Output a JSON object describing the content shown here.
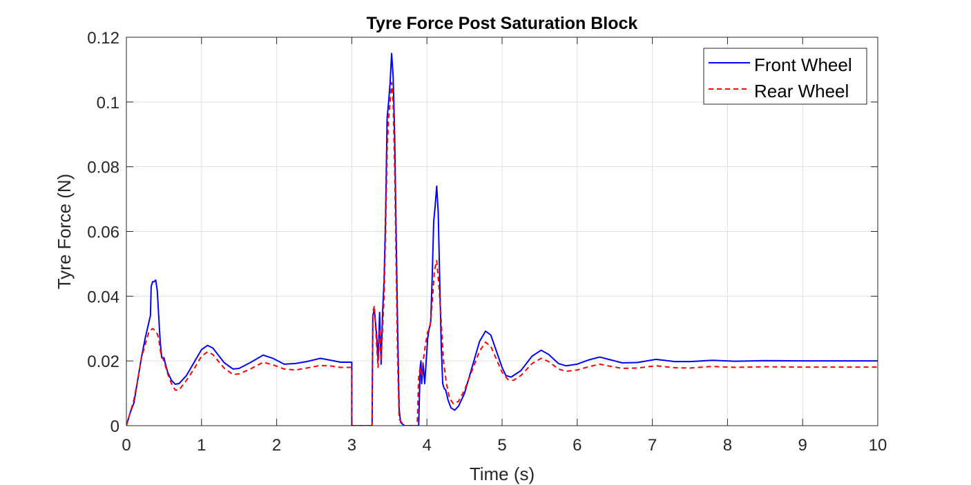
{
  "chart_data": {
    "type": "line",
    "title": "Tyre Force Post Saturation Block",
    "xlabel": "Time (s)",
    "ylabel": "Tyre Force (N)",
    "xlim": [
      0,
      10
    ],
    "ylim": [
      0,
      0.12
    ],
    "xticks": [
      0,
      1,
      2,
      3,
      4,
      5,
      6,
      7,
      8,
      9,
      10
    ],
    "xtick_labels": [
      "0",
      "1",
      "2",
      "3",
      "4",
      "5",
      "6",
      "7",
      "8",
      "9",
      "10"
    ],
    "yticks": [
      0,
      0.02,
      0.04,
      0.06,
      0.08,
      0.1,
      0.12
    ],
    "ytick_labels": [
      "0",
      "0.02",
      "0.04",
      "0.06",
      "0.08",
      "0.1",
      "0.12"
    ],
    "grid": true,
    "legend": "top-right",
    "series": [
      {
        "name": "Front Wheel",
        "color": "#0000ff",
        "style": "solid",
        "points": [
          [
            0,
            0
          ],
          [
            0.05,
            0.004
          ],
          [
            0.1,
            0.007
          ],
          [
            0.15,
            0.014
          ],
          [
            0.2,
            0.021
          ],
          [
            0.25,
            0.027
          ],
          [
            0.3,
            0.032
          ],
          [
            0.32,
            0.034
          ],
          [
            0.33,
            0.043
          ],
          [
            0.35,
            0.0445
          ],
          [
            0.37,
            0.0445
          ],
          [
            0.39,
            0.045
          ],
          [
            0.41,
            0.042
          ],
          [
            0.43,
            0.034
          ],
          [
            0.45,
            0.026
          ],
          [
            0.47,
            0.021
          ],
          [
            0.5,
            0.021
          ],
          [
            0.52,
            0.019
          ],
          [
            0.55,
            0.0165
          ],
          [
            0.6,
            0.014
          ],
          [
            0.65,
            0.0128
          ],
          [
            0.7,
            0.013
          ],
          [
            0.8,
            0.0155
          ],
          [
            0.9,
            0.0195
          ],
          [
            1.0,
            0.0235
          ],
          [
            1.08,
            0.0248
          ],
          [
            1.15,
            0.024
          ],
          [
            1.3,
            0.0195
          ],
          [
            1.42,
            0.0175
          ],
          [
            1.5,
            0.0177
          ],
          [
            1.65,
            0.0195
          ],
          [
            1.82,
            0.0218
          ],
          [
            1.95,
            0.0208
          ],
          [
            2.1,
            0.019
          ],
          [
            2.25,
            0.0192
          ],
          [
            2.4,
            0.0198
          ],
          [
            2.58,
            0.0208
          ],
          [
            2.7,
            0.0203
          ],
          [
            2.85,
            0.0196
          ],
          [
            3.0,
            0.0196
          ],
          [
            3.0,
            0
          ],
          [
            3.27,
            0
          ],
          [
            3.28,
            0.034
          ],
          [
            3.3,
            0.036
          ],
          [
            3.33,
            0.028
          ],
          [
            3.35,
            0.02
          ],
          [
            3.37,
            0.035
          ],
          [
            3.39,
            0.019
          ],
          [
            3.41,
            0.035
          ],
          [
            3.43,
            0.045
          ],
          [
            3.45,
            0.065
          ],
          [
            3.47,
            0.095
          ],
          [
            3.49,
            0.1
          ],
          [
            3.51,
            0.106
          ],
          [
            3.53,
            0.115
          ],
          [
            3.55,
            0.108
          ],
          [
            3.57,
            0.09
          ],
          [
            3.59,
            0.06
          ],
          [
            3.61,
            0.03
          ],
          [
            3.63,
            0.005
          ],
          [
            3.65,
            0.001
          ],
          [
            3.7,
            0
          ],
          [
            3.89,
            0
          ],
          [
            3.91,
            0.018
          ],
          [
            3.92,
            0.02
          ],
          [
            3.93,
            0.013
          ],
          [
            3.95,
            0.019
          ],
          [
            3.97,
            0.013
          ],
          [
            3.99,
            0.02
          ],
          [
            4.01,
            0.027
          ],
          [
            4.03,
            0.03
          ],
          [
            4.05,
            0.032
          ],
          [
            4.07,
            0.046
          ],
          [
            4.09,
            0.063
          ],
          [
            4.11,
            0.068
          ],
          [
            4.13,
            0.074
          ],
          [
            4.15,
            0.066
          ],
          [
            4.17,
            0.045
          ],
          [
            4.19,
            0.025
          ],
          [
            4.21,
            0.013
          ],
          [
            4.23,
            0.0115
          ],
          [
            4.25,
            0.011
          ],
          [
            4.28,
            0.008
          ],
          [
            4.32,
            0.0055
          ],
          [
            4.37,
            0.0048
          ],
          [
            4.42,
            0.006
          ],
          [
            4.5,
            0.01
          ],
          [
            4.6,
            0.018
          ],
          [
            4.7,
            0.026
          ],
          [
            4.78,
            0.0292
          ],
          [
            4.85,
            0.028
          ],
          [
            5.0,
            0.018
          ],
          [
            5.05,
            0.0155
          ],
          [
            5.12,
            0.015
          ],
          [
            5.25,
            0.017
          ],
          [
            5.4,
            0.0215
          ],
          [
            5.52,
            0.0233
          ],
          [
            5.62,
            0.022
          ],
          [
            5.75,
            0.0192
          ],
          [
            5.85,
            0.0185
          ],
          [
            6.0,
            0.019
          ],
          [
            6.15,
            0.0203
          ],
          [
            6.3,
            0.0212
          ],
          [
            6.45,
            0.0203
          ],
          [
            6.6,
            0.0194
          ],
          [
            6.8,
            0.0195
          ],
          [
            7.05,
            0.0205
          ],
          [
            7.3,
            0.0198
          ],
          [
            7.5,
            0.0198
          ],
          [
            7.8,
            0.0202
          ],
          [
            8.1,
            0.0199
          ],
          [
            8.5,
            0.0201
          ],
          [
            9.0,
            0.02
          ],
          [
            9.5,
            0.02
          ],
          [
            10,
            0.02
          ]
        ]
      },
      {
        "name": "Rear Wheel",
        "color": "#ff0000",
        "style": "dashed",
        "points": [
          [
            0,
            0
          ],
          [
            0.05,
            0.004
          ],
          [
            0.1,
            0.008
          ],
          [
            0.15,
            0.014
          ],
          [
            0.2,
            0.021
          ],
          [
            0.25,
            0.025
          ],
          [
            0.3,
            0.029
          ],
          [
            0.35,
            0.03
          ],
          [
            0.4,
            0.029
          ],
          [
            0.43,
            0.027
          ],
          [
            0.46,
            0.022
          ],
          [
            0.5,
            0.02
          ],
          [
            0.55,
            0.016
          ],
          [
            0.6,
            0.013
          ],
          [
            0.65,
            0.011
          ],
          [
            0.7,
            0.011
          ],
          [
            0.8,
            0.014
          ],
          [
            0.9,
            0.0175
          ],
          [
            1.0,
            0.0215
          ],
          [
            1.08,
            0.0228
          ],
          [
            1.15,
            0.022
          ],
          [
            1.3,
            0.0178
          ],
          [
            1.42,
            0.0158
          ],
          [
            1.5,
            0.016
          ],
          [
            1.65,
            0.0175
          ],
          [
            1.82,
            0.0196
          ],
          [
            1.95,
            0.0188
          ],
          [
            2.1,
            0.0175
          ],
          [
            2.25,
            0.0172
          ],
          [
            2.4,
            0.0178
          ],
          [
            2.58,
            0.0186
          ],
          [
            2.7,
            0.0185
          ],
          [
            2.85,
            0.018
          ],
          [
            3.0,
            0.018
          ],
          [
            3.0,
            0
          ],
          [
            3.27,
            0
          ],
          [
            3.28,
            0.035
          ],
          [
            3.3,
            0.037
          ],
          [
            3.33,
            0.025
          ],
          [
            3.35,
            0.018
          ],
          [
            3.37,
            0.03
          ],
          [
            3.39,
            0.02
          ],
          [
            3.41,
            0.03
          ],
          [
            3.43,
            0.04
          ],
          [
            3.45,
            0.06
          ],
          [
            3.47,
            0.085
          ],
          [
            3.49,
            0.095
          ],
          [
            3.51,
            0.1
          ],
          [
            3.53,
            0.106
          ],
          [
            3.55,
            0.1
          ],
          [
            3.57,
            0.08
          ],
          [
            3.59,
            0.05
          ],
          [
            3.61,
            0.02
          ],
          [
            3.63,
            0.002
          ],
          [
            3.7,
            0
          ],
          [
            3.87,
            0
          ],
          [
            3.89,
            0.015
          ],
          [
            3.91,
            0.018
          ],
          [
            3.93,
            0.015
          ],
          [
            3.95,
            0.02
          ],
          [
            3.98,
            0.025
          ],
          [
            4.01,
            0.029
          ],
          [
            4.04,
            0.03
          ],
          [
            4.07,
            0.038
          ],
          [
            4.1,
            0.048
          ],
          [
            4.13,
            0.051
          ],
          [
            4.16,
            0.043
          ],
          [
            4.19,
            0.032
          ],
          [
            4.22,
            0.02
          ],
          [
            4.26,
            0.013
          ],
          [
            4.3,
            0.0085
          ],
          [
            4.35,
            0.0068
          ],
          [
            4.42,
            0.0075
          ],
          [
            4.5,
            0.011
          ],
          [
            4.6,
            0.017
          ],
          [
            4.7,
            0.023
          ],
          [
            4.78,
            0.0258
          ],
          [
            4.85,
            0.0245
          ],
          [
            5.0,
            0.0165
          ],
          [
            5.08,
            0.0142
          ],
          [
            5.15,
            0.014
          ],
          [
            5.25,
            0.0155
          ],
          [
            5.4,
            0.0192
          ],
          [
            5.52,
            0.0208
          ],
          [
            5.62,
            0.0198
          ],
          [
            5.75,
            0.0175
          ],
          [
            5.85,
            0.0168
          ],
          [
            6.0,
            0.0172
          ],
          [
            6.15,
            0.0182
          ],
          [
            6.3,
            0.019
          ],
          [
            6.45,
            0.0183
          ],
          [
            6.6,
            0.0177
          ],
          [
            6.8,
            0.0178
          ],
          [
            7.05,
            0.0185
          ],
          [
            7.3,
            0.0179
          ],
          [
            7.5,
            0.0178
          ],
          [
            7.8,
            0.0183
          ],
          [
            8.1,
            0.018
          ],
          [
            8.5,
            0.0182
          ],
          [
            9.0,
            0.0181
          ],
          [
            9.5,
            0.0181
          ],
          [
            10,
            0.0181
          ]
        ]
      }
    ]
  }
}
